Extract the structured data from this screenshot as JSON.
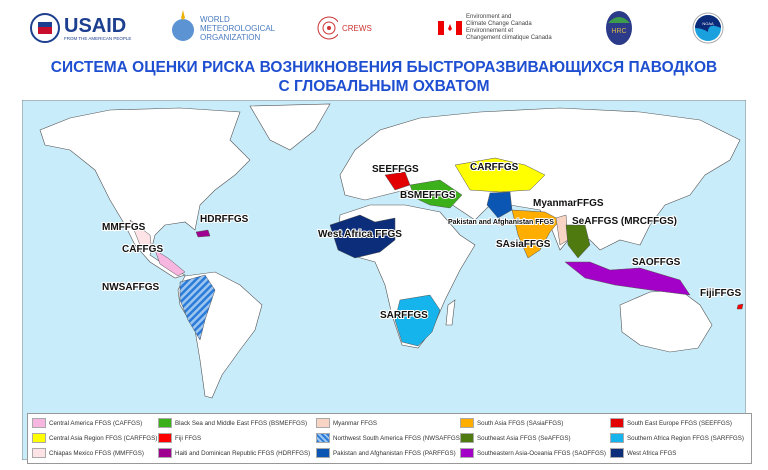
{
  "logos": {
    "usaid": "USAID",
    "usaid_sub": "FROM THE AMERICAN PEOPLE",
    "wmo": [
      "WORLD",
      "METEOROLOGICAL",
      "ORGANIZATION"
    ],
    "crews": "CREWS",
    "eccc": [
      "Environment and",
      "Climate Change Canada",
      "Environnement et",
      "Changement climatique Canada"
    ],
    "hrc": "HRC",
    "noaa": "NOAA"
  },
  "title": [
    "СИСТЕМА ОЦЕНКИ РИСКА ВОЗНИКНОВЕНИЯ БЫСТРОРАЗВИВАЮЩИХСЯ ПАВОДКОВ",
    "С ГЛОБАЛЬНЫМ ОХВАТОМ"
  ],
  "map_labels": [
    "SEEFFGS",
    "CARFFGS",
    "BSMEFFGS",
    "Pakistan and Afghanistan FFGS",
    "MyanmarFFGS",
    "SeAFFGS (MRCFFGS)",
    "SAsiaFFGS",
    "SAOFFGS",
    "FijiFFGS",
    "West Africa FFGS",
    "SARFFGS",
    "HDRFFGS",
    "MMFFGS",
    "CAFFGS",
    "NWSAFFGS"
  ],
  "colors": {
    "ocean": "#c9ecfa",
    "land": "#ffffff",
    "CAFFGS": "#f7b6e0",
    "CARFFGS": "#ffff00",
    "MMFFGS": "#fde2e6",
    "BSMEFFGS": "#3cb01a",
    "Fiji": "#ff0000",
    "HDRFFGS": "#a0008f",
    "Myanmar": "#f8d4c4",
    "NWSAFFGS": "#2b7bd9",
    "PARFFGS": "#0b56b3",
    "SAsiaFFGS": "#ffae00",
    "SeAFFGS": "#4e7a10",
    "SAOFFGS": "#a300c8",
    "SEEFFGS": "#e30000",
    "SARFFGS": "#16b4ec",
    "WestAfrica": "#0b2d7a"
  },
  "legend": [
    {
      "label": "Central America FFGS (CAFFGS)",
      "key": "CAFFGS"
    },
    {
      "label": "Central Asia Region FFGS (CARFFGS)",
      "key": "CARFFGS"
    },
    {
      "label": "Chiapas Mexico FFGS (MMFFGS)",
      "key": "MMFFGS"
    },
    {
      "label": "Black Sea and Middle East FFGS (BSMEFFGS)",
      "key": "BSMEFFGS"
    },
    {
      "label": "Fiji FFGS",
      "key": "Fiji"
    },
    {
      "label": "Haiti and Dominican Republic FFGS (HDRFFGS)",
      "key": "HDRFFGS"
    },
    {
      "label": "Myanmar FFGS",
      "key": "Myanmar"
    },
    {
      "label": "Northwest South America FFGS (NWSAFFGS)",
      "key": "NWSAFFGS"
    },
    {
      "label": "Pakistan and Afghanistan FFGS (PARFFGS)",
      "key": "PARFFGS"
    },
    {
      "label": "South Asia FFGS (SAsiaFFGS)",
      "key": "SAsiaFFGS"
    },
    {
      "label": "Southeast Asia FFGS (SeAFFGS)",
      "key": "SeAFFGS"
    },
    {
      "label": "Southeastern Asia-Oceania FFGS (SAOFFGS)",
      "key": "SAOFFGS"
    },
    {
      "label": "South East Europe FFGS (SEEFFGS)",
      "key": "SEEFFGS"
    },
    {
      "label": "Southern Africa Region FFGS (SARFFGS)",
      "key": "SARFFGS"
    },
    {
      "label": "West Africa FFGS",
      "key": "WestAfrica"
    }
  ]
}
